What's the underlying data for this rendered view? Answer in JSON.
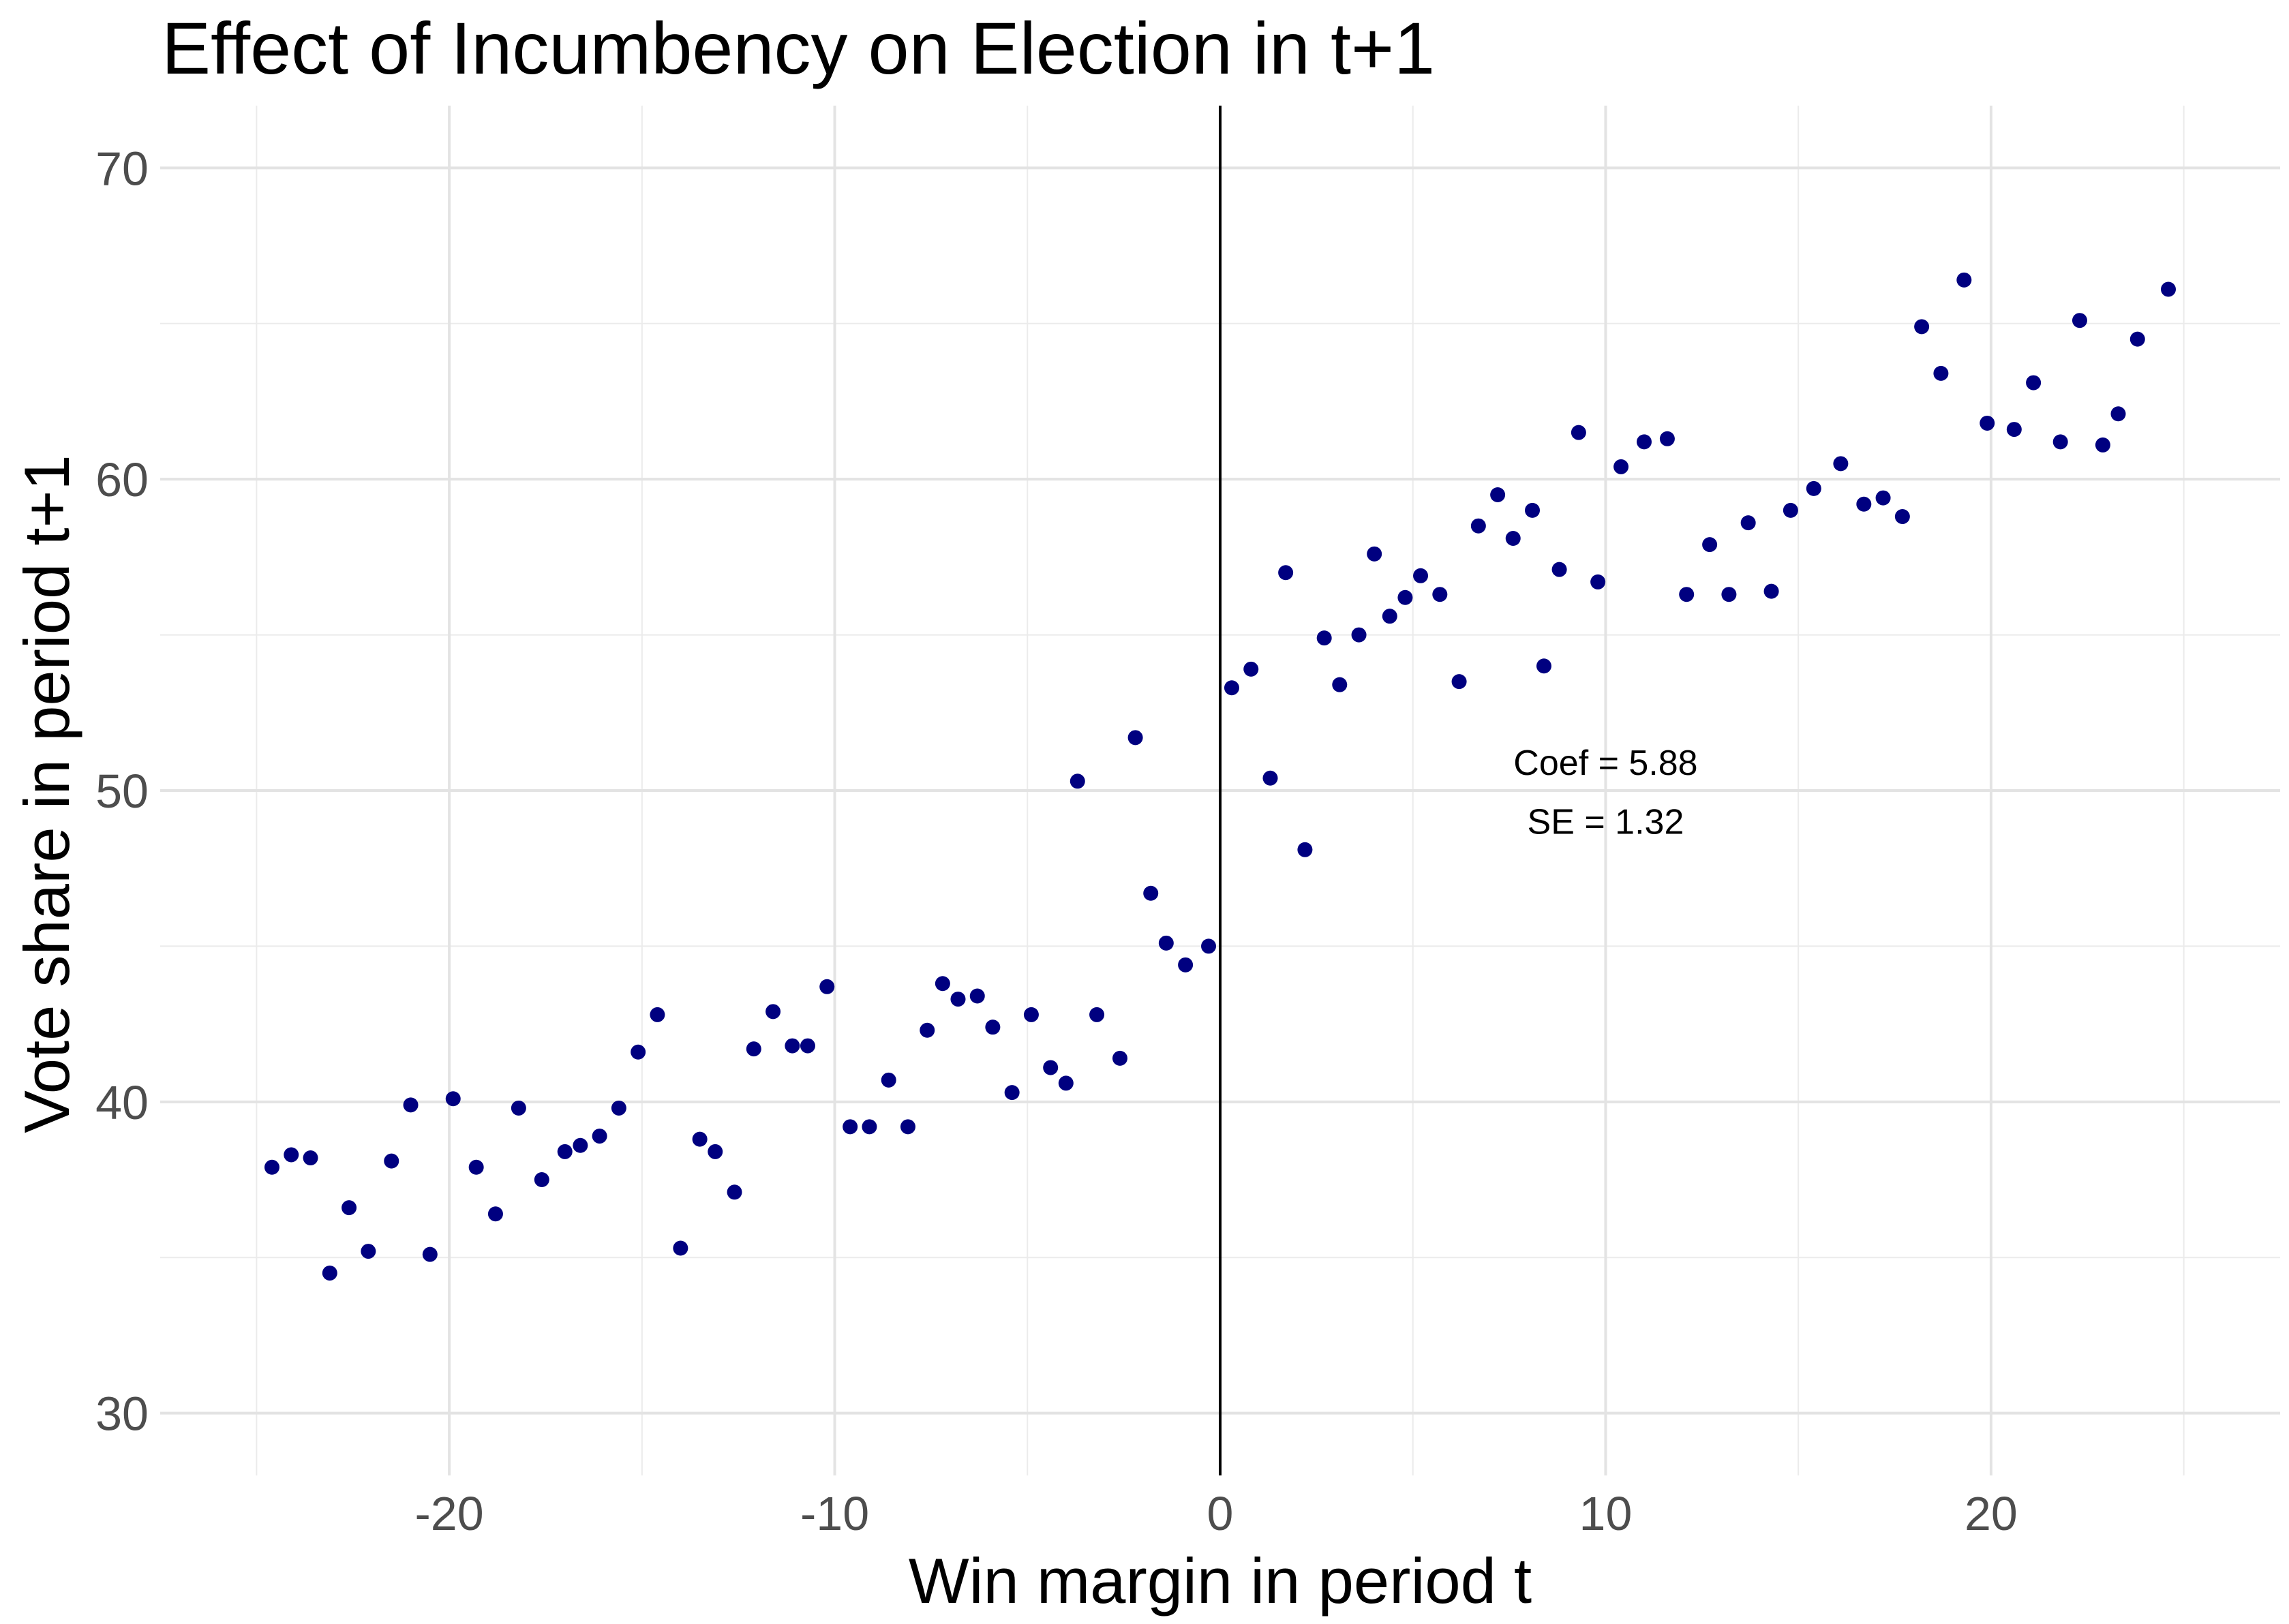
{
  "chart_data": {
    "type": "scatter",
    "title": "Effect of Incumbency on Election in t+1",
    "xlabel": "Win margin in period t",
    "ylabel": "Vote share in period t+1",
    "xlim": [
      -27.5,
      27.5
    ],
    "ylim": [
      28,
      72
    ],
    "x_ticks": [
      -20,
      -10,
      0,
      10,
      20
    ],
    "x_tick_labels": [
      "-20",
      "-10",
      "0",
      "10",
      "20"
    ],
    "y_ticks": [
      30,
      40,
      50,
      60,
      70
    ],
    "y_tick_labels": [
      "30",
      "40",
      "50",
      "60",
      "70"
    ],
    "grid": true,
    "point_color": "#000080",
    "vline": {
      "x": 0,
      "color": "#000000"
    },
    "annotations": [
      {
        "x": 10,
        "y": 50.9,
        "text": "Coef = 5.88"
      },
      {
        "x": 10,
        "y": 49.0,
        "text": "SE = 1.32"
      }
    ],
    "points": [
      [
        -24.6,
        37.9
      ],
      [
        -24.1,
        38.3
      ],
      [
        -23.6,
        38.2
      ],
      [
        -23.1,
        34.5
      ],
      [
        -22.6,
        36.6
      ],
      [
        -22.1,
        35.2
      ],
      [
        -21.5,
        38.1
      ],
      [
        -21.0,
        39.9
      ],
      [
        -20.5,
        35.1
      ],
      [
        -19.9,
        40.1
      ],
      [
        -19.3,
        37.9
      ],
      [
        -18.8,
        36.4
      ],
      [
        -18.2,
        39.8
      ],
      [
        -17.6,
        37.5
      ],
      [
        -17.0,
        38.4
      ],
      [
        -16.6,
        38.6
      ],
      [
        -16.1,
        38.9
      ],
      [
        -15.6,
        39.8
      ],
      [
        -15.1,
        41.6
      ],
      [
        -14.6,
        42.8
      ],
      [
        -14.0,
        35.3
      ],
      [
        -13.5,
        38.8
      ],
      [
        -13.1,
        38.4
      ],
      [
        -12.6,
        37.1
      ],
      [
        -12.1,
        41.7
      ],
      [
        -11.6,
        42.9
      ],
      [
        -11.1,
        41.8
      ],
      [
        -10.7,
        41.8
      ],
      [
        -10.2,
        43.7
      ],
      [
        -9.6,
        39.2
      ],
      [
        -9.1,
        39.2
      ],
      [
        -8.6,
        40.7
      ],
      [
        -8.1,
        39.2
      ],
      [
        -7.6,
        42.3
      ],
      [
        -7.2,
        43.8
      ],
      [
        -6.8,
        43.3
      ],
      [
        -6.3,
        43.4
      ],
      [
        -5.9,
        42.4
      ],
      [
        -5.4,
        40.3
      ],
      [
        -4.9,
        42.8
      ],
      [
        -4.4,
        41.1
      ],
      [
        -4.0,
        40.6
      ],
      [
        -3.7,
        50.3
      ],
      [
        -3.2,
        42.8
      ],
      [
        -2.6,
        41.4
      ],
      [
        -2.2,
        51.7
      ],
      [
        -1.8,
        46.7
      ],
      [
        -1.4,
        45.1
      ],
      [
        -0.9,
        44.4
      ],
      [
        -0.3,
        45.0
      ],
      [
        0.3,
        53.3
      ],
      [
        0.8,
        53.9
      ],
      [
        1.3,
        50.4
      ],
      [
        1.7,
        57.0
      ],
      [
        2.2,
        48.1
      ],
      [
        2.7,
        54.9
      ],
      [
        3.1,
        53.4
      ],
      [
        3.6,
        55.0
      ],
      [
        4.0,
        57.6
      ],
      [
        4.4,
        55.6
      ],
      [
        4.8,
        56.2
      ],
      [
        5.2,
        56.9
      ],
      [
        5.7,
        56.3
      ],
      [
        6.2,
        53.5
      ],
      [
        6.7,
        58.5
      ],
      [
        7.2,
        59.5
      ],
      [
        7.6,
        58.1
      ],
      [
        8.1,
        59.0
      ],
      [
        8.4,
        54.0
      ],
      [
        8.8,
        57.1
      ],
      [
        9.3,
        61.5
      ],
      [
        9.8,
        56.7
      ],
      [
        10.4,
        60.4
      ],
      [
        11.0,
        61.2
      ],
      [
        11.6,
        61.3
      ],
      [
        12.1,
        56.3
      ],
      [
        12.7,
        57.9
      ],
      [
        13.2,
        56.3
      ],
      [
        13.7,
        58.6
      ],
      [
        14.3,
        56.4
      ],
      [
        14.8,
        59.0
      ],
      [
        15.4,
        59.7
      ],
      [
        16.1,
        60.5
      ],
      [
        16.7,
        59.2
      ],
      [
        17.2,
        59.4
      ],
      [
        17.7,
        58.8
      ],
      [
        18.2,
        64.9
      ],
      [
        18.7,
        63.4
      ],
      [
        19.3,
        66.4
      ],
      [
        19.9,
        61.8
      ],
      [
        20.6,
        61.6
      ],
      [
        21.1,
        63.1
      ],
      [
        21.8,
        61.2
      ],
      [
        22.3,
        65.1
      ],
      [
        22.9,
        61.1
      ],
      [
        23.3,
        62.1
      ],
      [
        23.8,
        64.5
      ],
      [
        24.6,
        66.1
      ]
    ]
  }
}
